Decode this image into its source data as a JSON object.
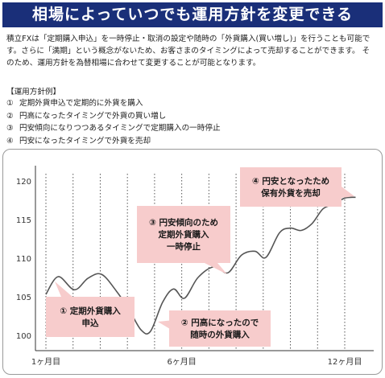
{
  "header": {
    "title": "相場によっていつでも運用方針を変更できる"
  },
  "intro": {
    "lines": [
      "積立FXは「定期購入申込」を一時停止・取消の設定や随時の「外貨購入(買い増し)」を行うことも可能で",
      "す。さらに「満期」という概念がないため、お客さまのタイミングによって売却することができます。 そ",
      "のため、運用方針を為替相場に合わせて変更することが可能となります。"
    ]
  },
  "steps": {
    "title": "【運用方針例】",
    "items": [
      {
        "num": "①",
        "text": "定期外貨申込で定期的に外貨を購入"
      },
      {
        "num": "②",
        "text": "円高になったタイミングで外貨の買い増し"
      },
      {
        "num": "③",
        "text": "円安傾向になりつつあるタイミングで定期購入の一時停止"
      },
      {
        "num": "④",
        "text": "円安になったタイミングで外貨を売却"
      }
    ]
  },
  "chart_data": {
    "type": "line",
    "ylim": [
      98,
      122
    ],
    "xlim": [
      0,
      12
    ],
    "yticks": [
      100,
      105,
      110,
      115,
      120
    ],
    "xticks": [
      {
        "x": 1,
        "label": "1ヶ月目"
      },
      {
        "x": 6,
        "label": "6ヶ月目"
      },
      {
        "x": 12,
        "label": "12ヶ月目"
      }
    ],
    "grid": "vertical-dotted",
    "colors": {
      "line": "#555555",
      "callout_fill": "#f7cccc",
      "axis": "#333333",
      "grid": "#555555"
    },
    "series": [
      {
        "x": [
          1.0,
          1.45,
          2.05,
          2.55,
          3.05,
          3.6,
          4.05,
          4.5,
          4.85,
          5.3,
          5.7,
          6.1,
          6.6,
          7.2,
          7.7,
          8.2,
          8.7,
          9.1,
          9.6,
          10.0,
          10.4,
          10.8,
          11.2,
          11.6,
          12.0,
          12.4
        ],
        "y": [
          105.3,
          107.6,
          105.9,
          107.4,
          107.9,
          105.7,
          103.4,
          100.7,
          100.5,
          104.3,
          106.0,
          104.8,
          107.5,
          108.9,
          108.1,
          110.4,
          110.9,
          110.1,
          113.3,
          113.9,
          113.6,
          114.5,
          116.4,
          117.0,
          117.8,
          117.9
        ]
      }
    ],
    "annotations": [
      {
        "num": "①",
        "lines": [
          "① 定期外貨購入",
          "申込"
        ]
      },
      {
        "num": "②",
        "lines": [
          "② 円高になったので",
          "随時の外貨購入"
        ]
      },
      {
        "num": "③",
        "lines": [
          "③ 円安傾向のため",
          "定期外貨購入",
          "一時停止"
        ]
      },
      {
        "num": "④",
        "lines": [
          "④ 円安となったため",
          "保有外貨を売却"
        ]
      }
    ]
  }
}
